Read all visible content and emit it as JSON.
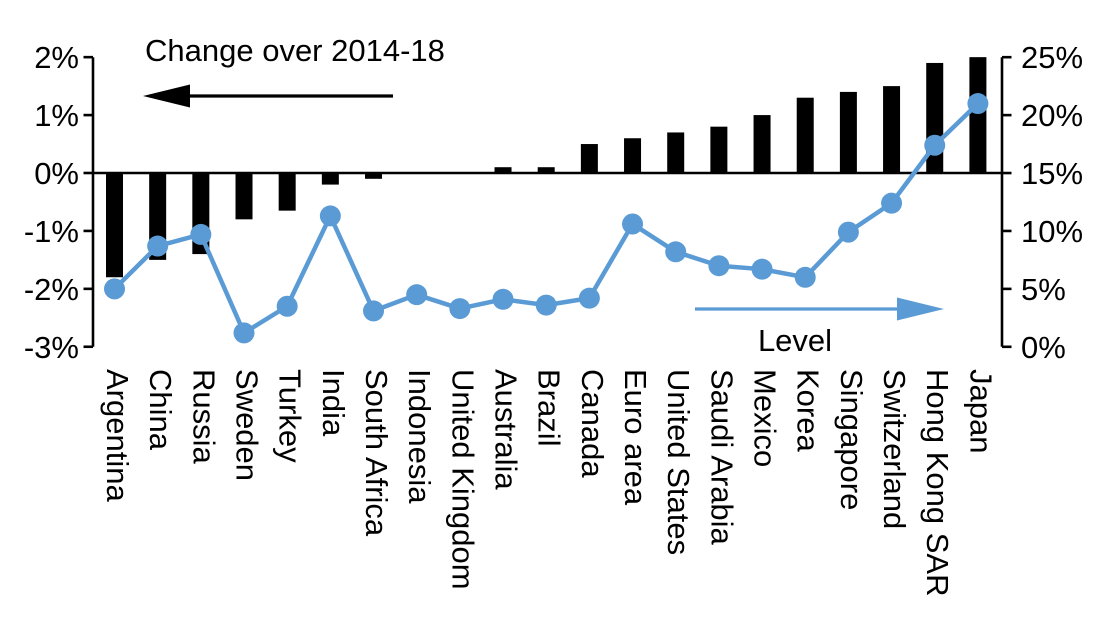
{
  "chart_data": {
    "type": "combo-bar-line",
    "title": "Change over 2014-18",
    "categories": [
      "Argentina",
      "China",
      "Russia",
      "Sweden",
      "Turkey",
      "India",
      "South Africa",
      "Indonesia",
      "United Kingdom",
      "Australia",
      "Brazil",
      "Canada",
      "Euro area",
      "United States",
      "Saudi Arabia",
      "Mexico",
      "Korea",
      "Singapore",
      "Switzerland",
      "Hong Kong SAR",
      "Japan"
    ],
    "series": [
      {
        "name": "Change over 2014-18",
        "type": "bar",
        "axis": "left",
        "color": "#000000",
        "values": [
          -1.8,
          -1.5,
          -1.4,
          -0.8,
          -0.65,
          -0.2,
          -0.1,
          0,
          0,
          0.1,
          0.1,
          0.5,
          0.6,
          0.7,
          0.8,
          1.0,
          1.3,
          1.4,
          1.5,
          1.9,
          2.0
        ]
      },
      {
        "name": "Level",
        "type": "line",
        "axis": "right",
        "color": "#5b9bd5",
        "values": [
          5.0,
          8.7,
          9.7,
          1.2,
          3.5,
          11.3,
          3.1,
          4.5,
          3.3,
          4.1,
          3.6,
          4.2,
          10.6,
          8.2,
          7.0,
          6.7,
          6.0,
          9.9,
          12.4,
          17.4,
          21.0
        ]
      }
    ],
    "left_axis": {
      "min": -3,
      "max": 2,
      "tick_labels": [
        "2%",
        "1%",
        "0%",
        "-1%",
        "-2%",
        "-3%"
      ],
      "tick_values": [
        2,
        1,
        0,
        -1,
        -2,
        -3
      ]
    },
    "right_axis": {
      "min": 0,
      "max": 25,
      "tick_labels": [
        "25%",
        "20%",
        "15%",
        "10%",
        "5%",
        "0%"
      ],
      "tick_values": [
        25,
        20,
        15,
        10,
        5,
        0
      ]
    },
    "annotations": {
      "bar_series_label": "Change over 2014-18",
      "bar_arrow_direction": "left",
      "line_series_label": "Level",
      "line_arrow_direction": "right"
    },
    "grid": "off",
    "colors": {
      "bar": "#000000",
      "line": "#5b9bd5",
      "text": "#000000"
    }
  }
}
